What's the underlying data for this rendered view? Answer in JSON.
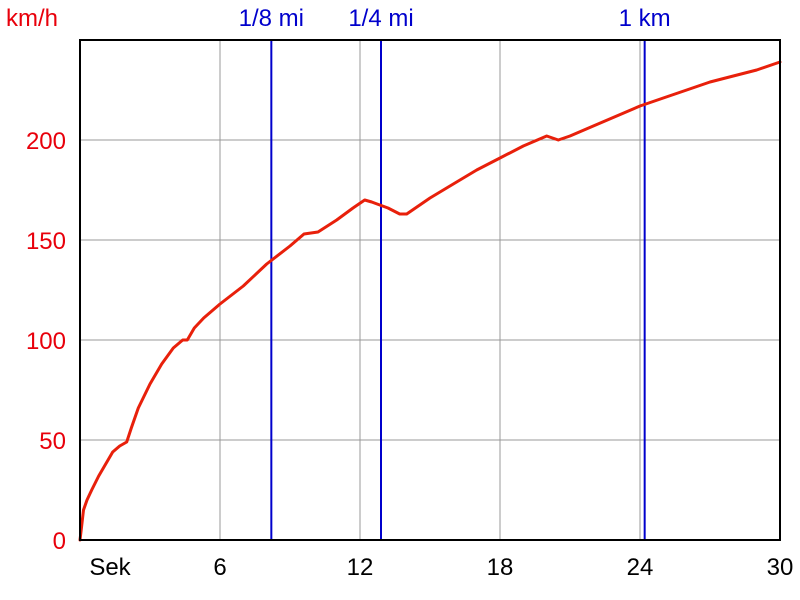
{
  "chart_data": {
    "type": "line",
    "ylabel": "km/h",
    "xlabel_first_tick": "Sek",
    "xlim": [
      0,
      30
    ],
    "ylim": [
      0,
      250
    ],
    "x_ticks": [
      {
        "value": 0,
        "label": "Sek"
      },
      {
        "value": 6,
        "label": "6"
      },
      {
        "value": 12,
        "label": "12"
      },
      {
        "value": 18,
        "label": "18"
      },
      {
        "value": 24,
        "label": "24"
      },
      {
        "value": 30,
        "label": "30"
      }
    ],
    "y_ticks": [
      {
        "value": 0,
        "label": "0"
      },
      {
        "value": 50,
        "label": "50"
      },
      {
        "value": 100,
        "label": "100"
      },
      {
        "value": 150,
        "label": "150"
      },
      {
        "value": 200,
        "label": "200"
      }
    ],
    "grid": true,
    "series": [
      {
        "color": "#e8200b",
        "x": [
          0,
          0.05,
          0.15,
          0.3,
          0.5,
          0.8,
          1.1,
          1.4,
          1.7,
          2.0,
          2.2,
          2.5,
          3.0,
          3.5,
          4.0,
          4.4,
          4.6,
          4.9,
          5.3,
          6.0,
          7.0,
          8.0,
          9.0,
          9.6,
          10.2,
          11.0,
          11.7,
          12.2,
          12.5,
          13.2,
          13.7,
          14.0,
          15.0,
          16.0,
          17.0,
          18.0,
          19.0,
          20.0,
          20.5,
          21.0,
          22.0,
          23.0,
          24.0,
          25.0,
          26.0,
          27.0,
          28.0,
          29.0,
          30.0
        ],
        "y": [
          0,
          5,
          15,
          20,
          25,
          32,
          38,
          44,
          47,
          49,
          56,
          66,
          78,
          88,
          96,
          100,
          100,
          106,
          111,
          118,
          127,
          138,
          147,
          153,
          154,
          160,
          166,
          170,
          169,
          166,
          163,
          163,
          171,
          178,
          185,
          191,
          197,
          202,
          200,
          202,
          207,
          212,
          217,
          221,
          225,
          229,
          232,
          235,
          239
        ]
      }
    ],
    "markers": [
      {
        "label": "1/8 mi",
        "x": 8.2,
        "color": "#0000cc"
      },
      {
        "label": "1/4 mi",
        "x": 12.9,
        "color": "#0000cc"
      },
      {
        "label": "1 km",
        "x": 24.2,
        "color": "#0000cc"
      }
    ],
    "colors": {
      "grid": "#999999",
      "axis": "#000000",
      "curve": "#e8200b",
      "marker": "#0000cc",
      "y_ticks": "#e8000b"
    }
  }
}
